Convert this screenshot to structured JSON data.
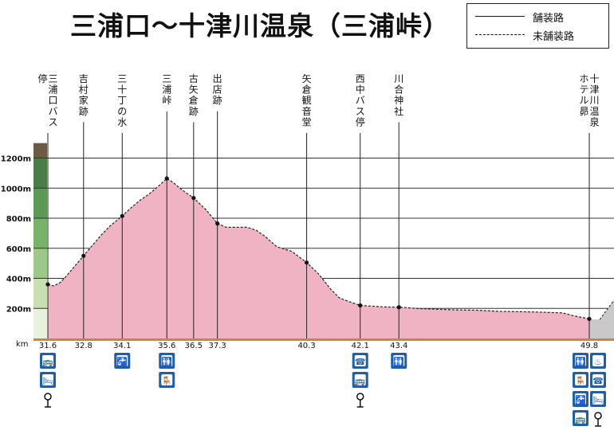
{
  "title": "三浦口〜十津川温泉（三浦峠）",
  "legend": [
    {
      "label": "舗装路",
      "style": "solid"
    },
    {
      "label": "未舗装路",
      "style": "dashed"
    }
  ],
  "colors": {
    "profile_fill": "#f0b3c4",
    "profile_line": "#222222",
    "grid": "#333333",
    "base_bar": "#c8873a",
    "icon_bg": "#1f5fa8",
    "scale_dark": "#6b5a44",
    "scale_green": "#5a9a5a"
  },
  "chart_data": {
    "type": "area",
    "xlabel": "km",
    "ylabel": "",
    "xlim": [
      31.6,
      49.8
    ],
    "ylim": [
      0,
      1300
    ],
    "y_ticks": [
      200,
      400,
      600,
      800,
      1000,
      1200
    ],
    "y_tick_labels": [
      "200m",
      "400m",
      "600m",
      "800m",
      "1000m",
      "1200m"
    ],
    "profile": [
      [
        31.6,
        360
      ],
      [
        31.8,
        350
      ],
      [
        32.0,
        370
      ],
      [
        32.2,
        410
      ],
      [
        32.5,
        480
      ],
      [
        32.8,
        550
      ],
      [
        33.1,
        620
      ],
      [
        33.4,
        690
      ],
      [
        33.7,
        750
      ],
      [
        34.1,
        815
      ],
      [
        34.4,
        870
      ],
      [
        34.7,
        920
      ],
      [
        35.0,
        960
      ],
      [
        35.3,
        1010
      ],
      [
        35.6,
        1065
      ],
      [
        35.8,
        1040
      ],
      [
        36.1,
        990
      ],
      [
        36.5,
        935
      ],
      [
        36.9,
        860
      ],
      [
        37.3,
        765
      ],
      [
        37.6,
        740
      ],
      [
        38.0,
        740
      ],
      [
        38.3,
        740
      ],
      [
        38.6,
        720
      ],
      [
        38.9,
        680
      ],
      [
        39.3,
        610
      ],
      [
        39.8,
        580
      ],
      [
        40.3,
        505
      ],
      [
        40.7,
        430
      ],
      [
        41.1,
        330
      ],
      [
        41.4,
        270
      ],
      [
        41.8,
        240
      ],
      [
        42.1,
        220
      ],
      [
        42.5,
        215
      ],
      [
        42.9,
        210
      ],
      [
        43.4,
        208
      ],
      [
        44.0,
        200
      ],
      [
        44.6,
        195
      ],
      [
        45.3,
        190
      ],
      [
        46.0,
        188
      ],
      [
        46.8,
        180
      ],
      [
        47.5,
        178
      ],
      [
        48.2,
        175
      ],
      [
        48.9,
        170
      ],
      [
        49.3,
        150
      ],
      [
        49.8,
        130
      ]
    ],
    "points": [
      {
        "name": "三浦口バス停",
        "km": 31.6,
        "elev": 360,
        "km_label": "31.6"
      },
      {
        "name": "吉村家跡",
        "km": 32.8,
        "elev": 550,
        "km_label": "32.8"
      },
      {
        "name": "三十丁の水",
        "km": 34.1,
        "elev": 815,
        "km_label": "34.1"
      },
      {
        "name": "三浦峠",
        "km": 35.6,
        "elev": 1065,
        "km_label": "35.6"
      },
      {
        "name": "古矢倉跡",
        "km": 36.5,
        "elev": 935,
        "km_label": "36.5"
      },
      {
        "name": "出店跡",
        "km": 37.3,
        "elev": 765,
        "km_label": "37.3"
      },
      {
        "name": "矢倉観音堂",
        "km": 40.3,
        "elev": 505,
        "km_label": "40.3"
      },
      {
        "name": "西中バス停",
        "km": 42.1,
        "elev": 220,
        "km_label": "42.1"
      },
      {
        "name": "川合神社",
        "km": 43.4,
        "elev": 208,
        "km_label": "43.4"
      },
      {
        "name": "十津川温泉ホテル昴",
        "km": 49.8,
        "elev": 130,
        "km_label": "49.8"
      }
    ],
    "grid": true
  },
  "facility_icons": [
    {
      "km": 31.6,
      "icons": [
        "bus-icon",
        "lodging-icon",
        "signpost-icon"
      ]
    },
    {
      "km": 34.1,
      "icons": [
        "water-icon"
      ]
    },
    {
      "km": 35.6,
      "icons": [
        "toilet-icon",
        "rest-area-icon"
      ]
    },
    {
      "km": 42.1,
      "icons": [
        "phone-icon",
        "bus-icon",
        "signpost-icon"
      ]
    },
    {
      "km": 43.4,
      "icons": [
        "toilet-icon"
      ]
    },
    {
      "km": 49.8,
      "icons": [
        "toilet-icon",
        "hot-spring-icon",
        "rest-area-icon",
        "phone-icon",
        "water-icon",
        "lodging-icon",
        "bus-icon",
        "signpost-icon"
      ]
    }
  ]
}
